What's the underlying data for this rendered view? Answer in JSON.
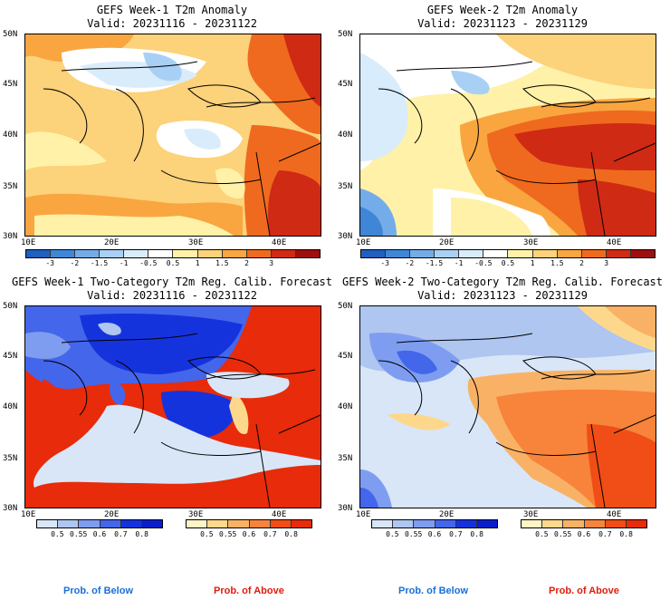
{
  "panels": [
    {
      "id": "p1",
      "title": "GEFS Week-1 T2m Anomaly",
      "valid": "Valid: 20231116 - 20231122",
      "yticks": [
        "50N",
        "45N",
        "40N",
        "35N",
        "30N"
      ],
      "xticks": [
        "10E",
        "20E",
        "30E",
        "40E"
      ],
      "scale": "anomaly"
    },
    {
      "id": "p2",
      "title": "GEFS Week-2 T2m Anomaly",
      "valid": "Valid: 20231123 - 20231129",
      "yticks": [
        "50N",
        "45N",
        "40N",
        "35N",
        "30N"
      ],
      "xticks": [
        "10E",
        "20E",
        "30E",
        "40E"
      ],
      "scale": "anomaly"
    },
    {
      "id": "p3",
      "title": "GEFS Week-1 Two-Category T2m Reg. Calib. Forecast",
      "valid": "Valid: 20231116 - 20231122",
      "yticks": [
        "50N",
        "45N",
        "40N",
        "35N",
        "30N"
      ],
      "xticks": [
        "10E",
        "20E",
        "30E",
        "40E"
      ],
      "scale": "prob"
    },
    {
      "id": "p4",
      "title": "GEFS Week-2 Two-Category T2m Reg. Calib. Forecast",
      "valid": "Valid: 20231123 - 20231129",
      "yticks": [
        "50N",
        "45N",
        "40N",
        "35N",
        "30N"
      ],
      "xticks": [
        "10E",
        "20E",
        "30E",
        "40E"
      ],
      "scale": "prob"
    }
  ],
  "anomaly_colorbar": {
    "labels": [
      "-3",
      "-2",
      "-1.5",
      "-1",
      "-0.5",
      "0.5",
      "1",
      "1.5",
      "2",
      "3"
    ],
    "colors": [
      "#1f5fbf",
      "#3f86d6",
      "#74acea",
      "#a8d0f5",
      "#d9ecfb",
      "#ffffff",
      "#fff1a8",
      "#fcd27a",
      "#f9a640",
      "#ef6a1e",
      "#cf2a14",
      "#9e0f0f"
    ]
  },
  "prob_below_colorbar": {
    "labels": [
      "0.5",
      "0.55",
      "0.6",
      "0.7",
      "0.8"
    ],
    "colors": [
      "#d8e6f8",
      "#aec6f0",
      "#7f9df0",
      "#4466ea",
      "#1533dd",
      "#0a1fcc"
    ]
  },
  "prob_above_colorbar": {
    "labels": [
      "0.5",
      "0.55",
      "0.6",
      "0.7",
      "0.8"
    ],
    "colors": [
      "#fff4c4",
      "#fdd88c",
      "#f9b265",
      "#f7843a",
      "#f14d16",
      "#e82b0a"
    ]
  },
  "legend": {
    "below": "Prob. of Below",
    "above": "Prob. of Above",
    "below_color": "#1a6fd8",
    "above_color": "#e01c0c"
  }
}
